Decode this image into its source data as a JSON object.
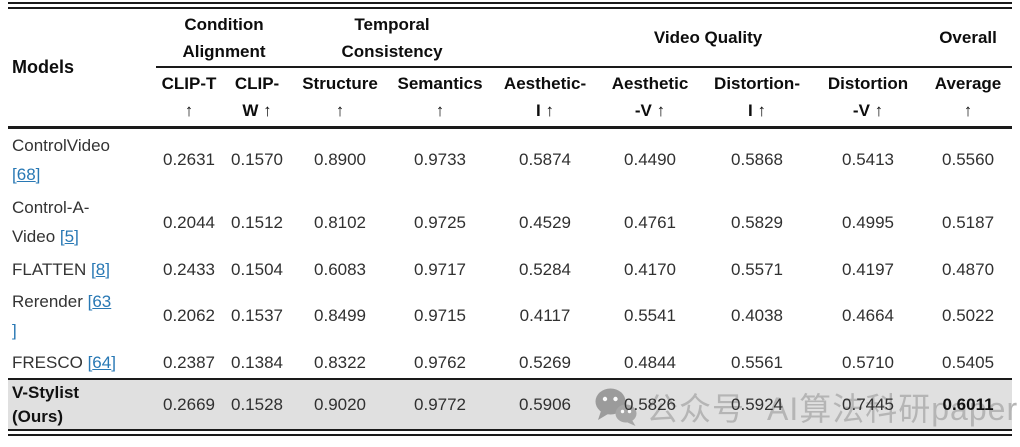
{
  "table": {
    "models_label": "Models",
    "groups": [
      {
        "label": "Condition Alignment",
        "lines": [
          "Condition",
          "Alignment"
        ],
        "span": 2
      },
      {
        "label": "Temporal Consistency",
        "lines": [
          "Temporal",
          "Consistency"
        ],
        "span": 2
      },
      {
        "label": "Video Quality",
        "lines": [
          "Video Quality"
        ],
        "span": 4
      },
      {
        "label": "Overall",
        "lines": [
          "Overall"
        ],
        "span": 1
      }
    ],
    "columns": [
      {
        "label": "CLIP-T ↑",
        "lines": [
          "CLIP-T",
          "↑"
        ]
      },
      {
        "label": "CLIP-W ↑",
        "lines": [
          "CLIP-",
          "W ↑"
        ]
      },
      {
        "label": "Structure ↑",
        "lines": [
          "Structure",
          "↑"
        ]
      },
      {
        "label": "Semantics ↑",
        "lines": [
          "Semantics",
          "↑"
        ]
      },
      {
        "label": "Aesthetic-I ↑",
        "lines": [
          "Aesthetic-",
          "I ↑"
        ]
      },
      {
        "label": "Aesthetic-V ↑",
        "lines": [
          "Aesthetic",
          "-V ↑"
        ]
      },
      {
        "label": "Distortion-I ↑",
        "lines": [
          "Distortion-",
          "I ↑"
        ]
      },
      {
        "label": "Distortion-V ↑",
        "lines": [
          "Distortion",
          "-V ↑"
        ]
      },
      {
        "label": "Average ↑",
        "lines": [
          "Average",
          "↑"
        ]
      }
    ],
    "rows": [
      {
        "model": "ControlVideo [68]",
        "ref": "68",
        "ours": false,
        "name_lines": [
          {
            "t": "ControlVideo"
          },
          {
            "o": 1,
            "c": "68",
            "x": 1
          }
        ],
        "values": [
          "0.2631",
          "0.1570",
          "0.8900",
          "0.9733",
          "0.5874",
          "0.4490",
          "0.5868",
          "0.5413",
          "0.5560"
        ]
      },
      {
        "model": "Control-A-Video [5]",
        "ref": "5",
        "ours": false,
        "name_lines": [
          {
            "t": "Control-A-"
          },
          {
            "t": "Video ",
            "o": 1,
            "c": "5",
            "x": 1
          }
        ],
        "values": [
          "0.2044",
          "0.1512",
          "0.8102",
          "0.9725",
          "0.4529",
          "0.4761",
          "0.5829",
          "0.4995",
          "0.5187"
        ]
      },
      {
        "model": "FLATTEN [8]",
        "ref": "8",
        "ours": false,
        "name_lines": [
          {
            "t": "FLATTEN ",
            "o": 1,
            "c": "8",
            "x": 1
          }
        ],
        "values": [
          "0.2433",
          "0.1504",
          "0.6083",
          "0.9717",
          "0.5284",
          "0.4170",
          "0.5571",
          "0.4197",
          "0.4870"
        ]
      },
      {
        "model": "Rerender [63]",
        "ref": "63",
        "ours": false,
        "name_lines": [
          {
            "t": "Rerender ",
            "o": 1,
            "c": "63"
          },
          {
            "x": 1
          }
        ],
        "values": [
          "0.2062",
          "0.1537",
          "0.8499",
          "0.9715",
          "0.4117",
          "0.5541",
          "0.4038",
          "0.4664",
          "0.5022"
        ]
      },
      {
        "model": "FRESCO [64]",
        "ref": "64",
        "ours": false,
        "name_lines": [
          {
            "t": "FRESCO ",
            "o": 1,
            "c": "64",
            "x": 1
          }
        ],
        "values": [
          "0.2387",
          "0.1384",
          "0.8322",
          "0.9762",
          "0.5269",
          "0.4844",
          "0.5561",
          "0.5710",
          "0.5405"
        ]
      },
      {
        "model": "V-Stylist (Ours)",
        "ref": null,
        "ours": true,
        "bold_value_index": 8,
        "name_lines": [
          {
            "t": "V-Stylist"
          },
          {
            "t": "(Ours)"
          }
        ],
        "values": [
          "0.2669",
          "0.1528",
          "0.9020",
          "0.9772",
          "0.5906",
          "0.5826",
          "0.5924",
          "0.7445",
          "0.6011"
        ]
      }
    ]
  },
  "watermark": {
    "icon": "wechat-icon",
    "text1": "公众号",
    "text2": "AI算法科研paper"
  },
  "colors": {
    "link_blue": "#2878b4",
    "ours_row_bg": "#e0e0e0",
    "rule": "#1a1a1a",
    "watermark_grey": "#b5b5b5"
  }
}
